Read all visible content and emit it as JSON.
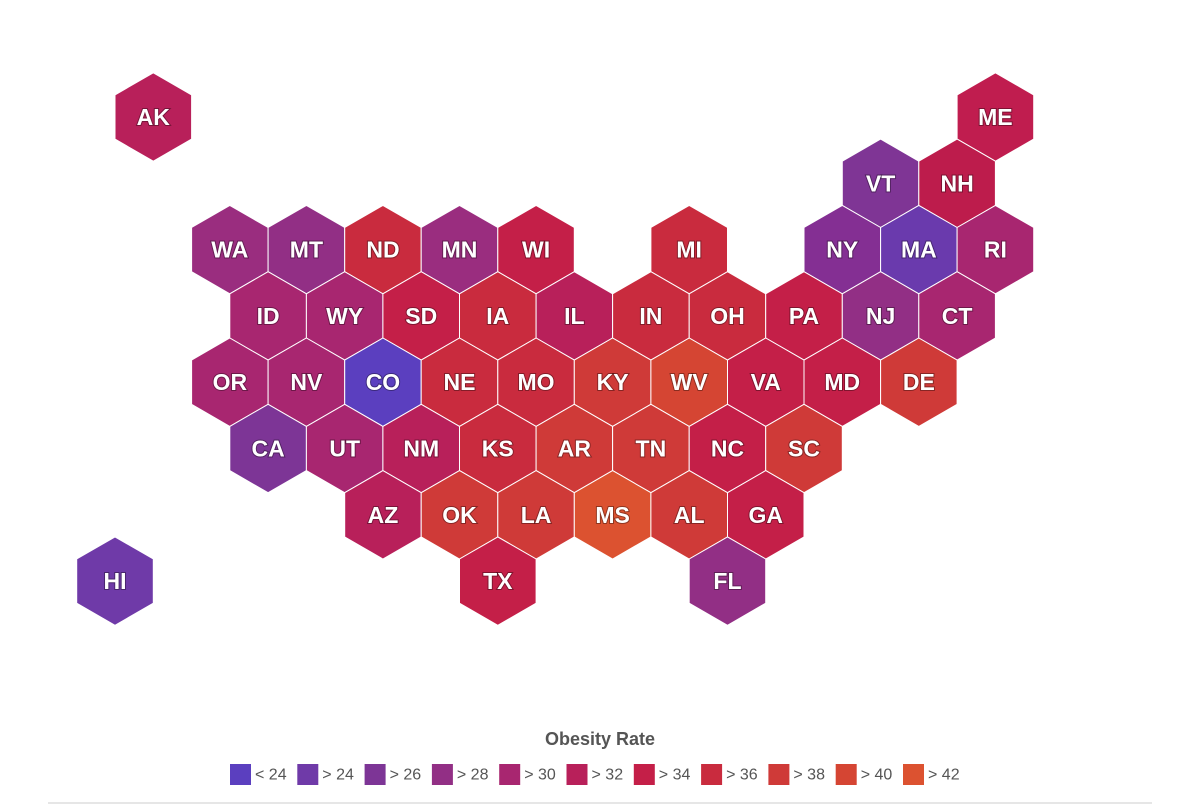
{
  "map": {
    "states": [
      {
        "label": "AK",
        "color": "#b8205a"
      },
      {
        "label": "ME",
        "color": "#c01d4f"
      },
      {
        "label": "VT",
        "color": "#7f3595"
      },
      {
        "label": "NH",
        "color": "#bd1c4c"
      },
      {
        "label": "WA",
        "color": "#9a2d7f"
      },
      {
        "label": "MT",
        "color": "#922f85"
      },
      {
        "label": "ND",
        "color": "#c92b3e"
      },
      {
        "label": "MN",
        "color": "#9a2d7f"
      },
      {
        "label": "WI",
        "color": "#c41f48"
      },
      {
        "label": "MI",
        "color": "#c92b3e"
      },
      {
        "label": "NY",
        "color": "#842f93"
      },
      {
        "label": "MA",
        "color": "#6a3aad"
      },
      {
        "label": "RI",
        "color": "#a82670"
      },
      {
        "label": "ID",
        "color": "#a82670"
      },
      {
        "label": "WY",
        "color": "#a82670"
      },
      {
        "label": "SD",
        "color": "#c41f48"
      },
      {
        "label": "IA",
        "color": "#c92b3e"
      },
      {
        "label": "IL",
        "color": "#b8205a"
      },
      {
        "label": "IN",
        "color": "#c92b3e"
      },
      {
        "label": "OH",
        "color": "#c92b3e"
      },
      {
        "label": "PA",
        "color": "#c41f48"
      },
      {
        "label": "NJ",
        "color": "#922f85"
      },
      {
        "label": "CT",
        "color": "#a82670"
      },
      {
        "label": "OR",
        "color": "#a82670"
      },
      {
        "label": "NV",
        "color": "#a82670"
      },
      {
        "label": "CO",
        "color": "#5b3fbf"
      },
      {
        "label": "NE",
        "color": "#c92b3e"
      },
      {
        "label": "MO",
        "color": "#c92b3e"
      },
      {
        "label": "KY",
        "color": "#cf3a38"
      },
      {
        "label": "WV",
        "color": "#d54533"
      },
      {
        "label": "VA",
        "color": "#c41f48"
      },
      {
        "label": "MD",
        "color": "#c41f48"
      },
      {
        "label": "DE",
        "color": "#cf3a38"
      },
      {
        "label": "CA",
        "color": "#7d3596"
      },
      {
        "label": "UT",
        "color": "#a82670"
      },
      {
        "label": "NM",
        "color": "#b8205a"
      },
      {
        "label": "KS",
        "color": "#c92b3e"
      },
      {
        "label": "AR",
        "color": "#cf3a38"
      },
      {
        "label": "TN",
        "color": "#cf3a38"
      },
      {
        "label": "NC",
        "color": "#c41f48"
      },
      {
        "label": "SC",
        "color": "#cf3a38"
      },
      {
        "label": "AZ",
        "color": "#b8205a"
      },
      {
        "label": "OK",
        "color": "#cf3a38"
      },
      {
        "label": "LA",
        "color": "#cf3a38"
      },
      {
        "label": "MS",
        "color": "#dc5230"
      },
      {
        "label": "AL",
        "color": "#cf3a38"
      },
      {
        "label": "GA",
        "color": "#c41f48"
      },
      {
        "label": "HI",
        "color": "#6f3aa8"
      },
      {
        "label": "TX",
        "color": "#c41f48"
      },
      {
        "label": "FL",
        "color": "#922f85"
      }
    ],
    "legend": {
      "title": "Obesity Rate",
      "classes": [
        {
          "label": "< 24",
          "color": "#5b3fbf"
        },
        {
          "label": "> 24",
          "color": "#6f3aa8"
        },
        {
          "label": "> 26",
          "color": "#7d3596"
        },
        {
          "label": "> 28",
          "color": "#922f85"
        },
        {
          "label": "> 30",
          "color": "#a82670"
        },
        {
          "label": "> 32",
          "color": "#b8205a"
        },
        {
          "label": "> 34",
          "color": "#c41f48"
        },
        {
          "label": "> 36",
          "color": "#c92b3e"
        },
        {
          "label": "> 38",
          "color": "#cf3a38"
        },
        {
          "label": "> 40",
          "color": "#d54533"
        },
        {
          "label": "> 42",
          "color": "#dc5230"
        }
      ]
    }
  }
}
